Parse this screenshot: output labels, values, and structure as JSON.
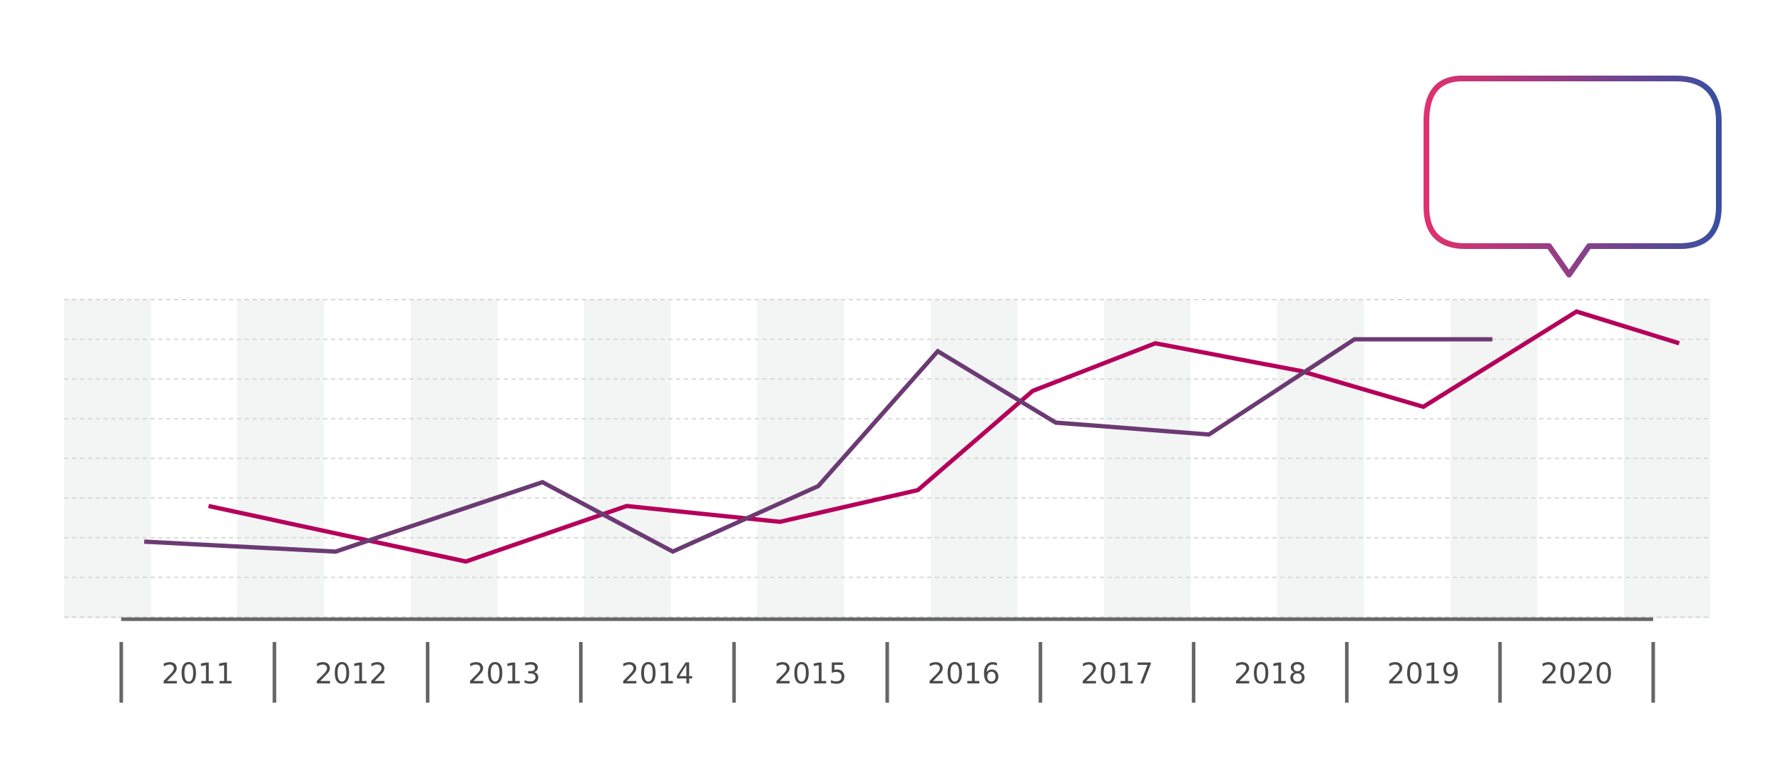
{
  "chart_data": {
    "type": "line",
    "categories": [
      "2011",
      "2012",
      "2013",
      "2014",
      "2015",
      "2016",
      "2017",
      "2018",
      "2019",
      "2020"
    ],
    "ylim": [
      0,
      8
    ],
    "grid": true,
    "series": [
      {
        "color": "#b5005b",
        "points": [
          {
            "x": 0.57,
            "y": 2.8
          },
          {
            "x": 2.25,
            "y": 1.4
          },
          {
            "x": 3.3,
            "y": 2.8
          },
          {
            "x": 4.3,
            "y": 2.4
          },
          {
            "x": 5.2,
            "y": 3.2
          },
          {
            "x": 5.95,
            "y": 5.7
          },
          {
            "x": 6.75,
            "y": 6.9
          },
          {
            "x": 7.7,
            "y": 6.2
          },
          {
            "x": 8.5,
            "y": 5.3
          },
          {
            "x": 9.5,
            "y": 7.7
          },
          {
            "x": 10.17,
            "y": 6.9
          }
        ]
      },
      {
        "color": "#6b3a73",
        "points": [
          {
            "x": 0.15,
            "y": 1.9
          },
          {
            "x": 1.4,
            "y": 1.65
          },
          {
            "x": 2.75,
            "y": 3.4
          },
          {
            "x": 3.6,
            "y": 1.65
          },
          {
            "x": 4.55,
            "y": 3.3
          },
          {
            "x": 5.33,
            "y": 6.7
          },
          {
            "x": 6.1,
            "y": 4.9
          },
          {
            "x": 7.1,
            "y": 4.6
          },
          {
            "x": 8.05,
            "y": 7.0
          },
          {
            "x": 8.95,
            "y": 7.0
          }
        ]
      }
    ]
  },
  "callout": {
    "gradient_start": "#e0306f",
    "gradient_end": "#3a4fa0"
  },
  "style": {
    "band_color": "#f3f4f4",
    "grid_color": "#d9d9d9",
    "axis_color": "#666666"
  }
}
